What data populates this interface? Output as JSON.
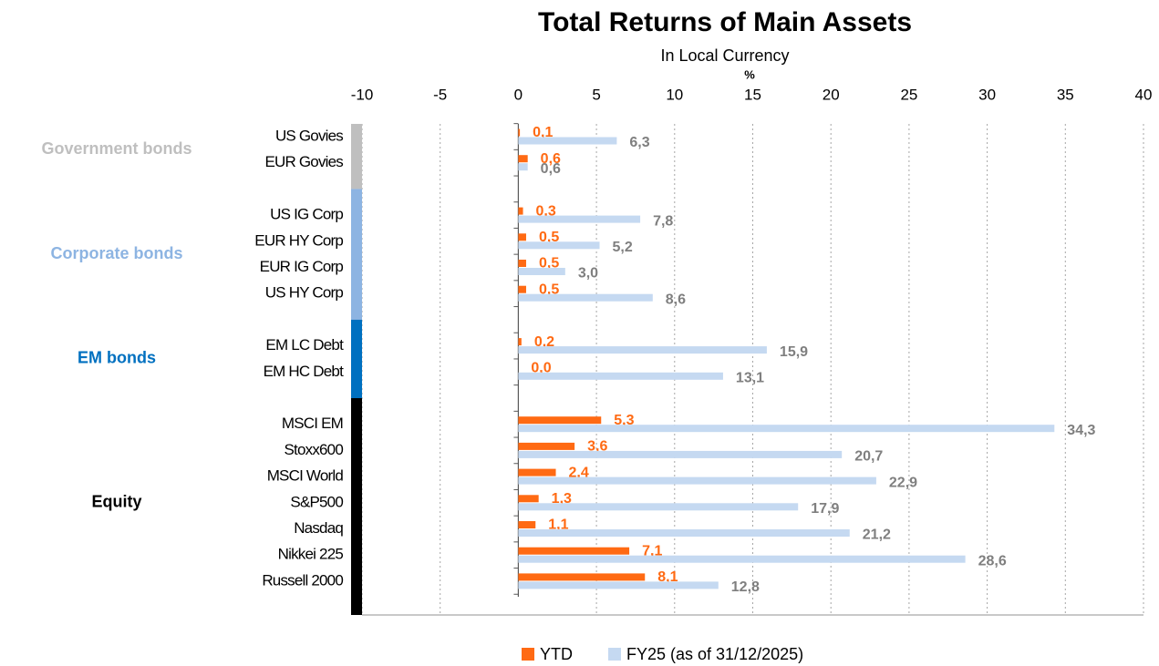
{
  "chart_data": {
    "type": "bar",
    "orientation": "horizontal",
    "title": "Total Returns of Main Assets",
    "subtitle": "In Local Currency",
    "x_label": "%",
    "categories": [
      "US Govies",
      "EUR Govies",
      null,
      "US IG Corp",
      "EUR HY Corp",
      "EUR IG Corp",
      "US HY Corp",
      null,
      "EM LC Debt",
      "EM HC Debt",
      null,
      "MSCI EM",
      "Stoxx600",
      "MSCI World",
      "S&P500",
      "Nasdaq",
      "Nikkei 225",
      "Russell 2000"
    ],
    "groups": [
      {
        "label": "Government bonds",
        "color": "#bfbfbf"
      },
      {
        "label": "Corporate bonds",
        "color": "#8db4e2"
      },
      {
        "label": "EM bonds",
        "color": "#0070c0"
      },
      {
        "label": "Equity",
        "color": "#000000"
      }
    ],
    "series": [
      {
        "name": "YTD",
        "color": "#ff6a13",
        "values": [
          0.1,
          0.6,
          null,
          0.3,
          0.5,
          0.5,
          0.5,
          null,
          0.2,
          0.0,
          null,
          5.3,
          3.6,
          2.4,
          1.3,
          1.1,
          7.1,
          8.1
        ],
        "value_labels": [
          "0,1",
          "0,6",
          null,
          "0,3",
          "0,5",
          "0,5",
          "0,5",
          null,
          "0,2",
          "0,0",
          null,
          "5,3",
          "3,6",
          "2,4",
          "1,3",
          "1,1",
          "7,1",
          "8,1"
        ]
      },
      {
        "name": "FY25 (as of 31/12/2025)",
        "color": "#c5d9f1",
        "values": [
          6.3,
          0.6,
          null,
          7.8,
          5.2,
          3.0,
          8.6,
          null,
          15.9,
          13.1,
          null,
          34.3,
          20.7,
          22.9,
          17.9,
          21.2,
          28.6,
          12.8
        ],
        "value_labels": [
          "6,3",
          "0,6",
          null,
          "7,8",
          "5,2",
          "3,0",
          "8,6",
          null,
          "15,9",
          "13,1",
          null,
          "34,3",
          "20,7",
          "22,9",
          "17,9",
          "21,2",
          "28,6",
          "12,8"
        ]
      }
    ],
    "xlim": [
      -10,
      40
    ],
    "xticks": [
      -10,
      -5,
      0,
      5,
      10,
      15,
      20,
      25,
      30,
      35,
      40
    ],
    "grid": true,
    "legend": "bottom"
  }
}
